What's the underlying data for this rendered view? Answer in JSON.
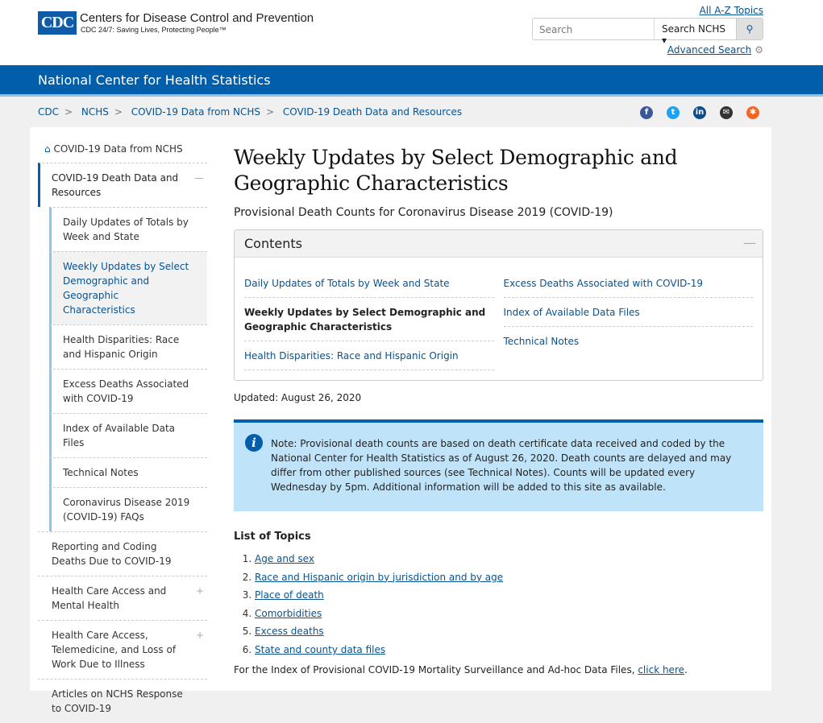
{
  "header": {
    "logo": "CDC",
    "org": "Centers for Disease Control and Prevention",
    "tagline": "CDC 24/7: Saving Lives, Protecting People™",
    "az": "All A-Z Topics",
    "search_placeholder": "Search",
    "search_scope": "Search NCHS",
    "advanced": "Advanced Search"
  },
  "band": {
    "title": "National Center for Health Statistics"
  },
  "breadcrumb": [
    "CDC",
    "NCHS",
    "COVID-19 Data from NCHS",
    "COVID-19 Death Data and Resources"
  ],
  "social": [
    "facebook",
    "twitter",
    "linkedin",
    "email",
    "syndicate"
  ],
  "sidebar": {
    "home": "COVID-19 Data from NCHS",
    "active": "COVID-19 Death Data and Resources",
    "sub": [
      "Daily Updates of Totals by Week and State",
      "Weekly Updates by Select Demographic and Geographic Characteristics",
      "Health Disparities: Race and Hispanic Origin",
      "Excess Deaths Associated with COVID-19",
      "Index of Available Data Files",
      "Technical Notes",
      "Coronavirus Disease 2019 (COVID-19) FAQs"
    ],
    "items": [
      "Reporting and Coding Deaths Due to COVID-19",
      "Health Care Access and Mental Health",
      "Health Care Access, Telemedicine, and Loss of Work Due to Illness",
      "Articles on NCHS Response to COVID-19"
    ]
  },
  "main": {
    "title": "Weekly Updates by Select Demographic and Geographic Characteristics",
    "subtitle": "Provisional Death Counts for Coronavirus Disease 2019 (COVID-19)",
    "contents": {
      "title": "Contents",
      "left": [
        "Daily Updates of Totals by Week and State",
        "Weekly Updates by Select Demographic and Geographic Characteristics",
        "Health Disparities: Race and Hispanic Origin"
      ],
      "right": [
        "Excess Deaths Associated with COVID-19",
        "Index of Available Data Files",
        "Technical Notes"
      ]
    },
    "updated": "Updated: August 26, 2020",
    "note": "Note: Provisional death counts are based on death certificate data received and coded by the National Center for Health Statistics as of August 26, 2020. Death counts are delayed and may differ from other published sources (see Technical Notes). Counts will be updated every Wednesday by 5pm. Additional information will be added to this site as available.",
    "topics_title": "List of Topics",
    "topics": [
      "Age and sex",
      "Race and Hispanic origin by jurisdiction and by age",
      "Place of death",
      "Comorbidities",
      "Excess deaths",
      "State and county data files"
    ],
    "footer_text": "For the Index of Provisional COVID-19 Mortality Surveillance and Ad-hoc Data Files, ",
    "footer_link": "click here",
    "footer_end": "."
  }
}
